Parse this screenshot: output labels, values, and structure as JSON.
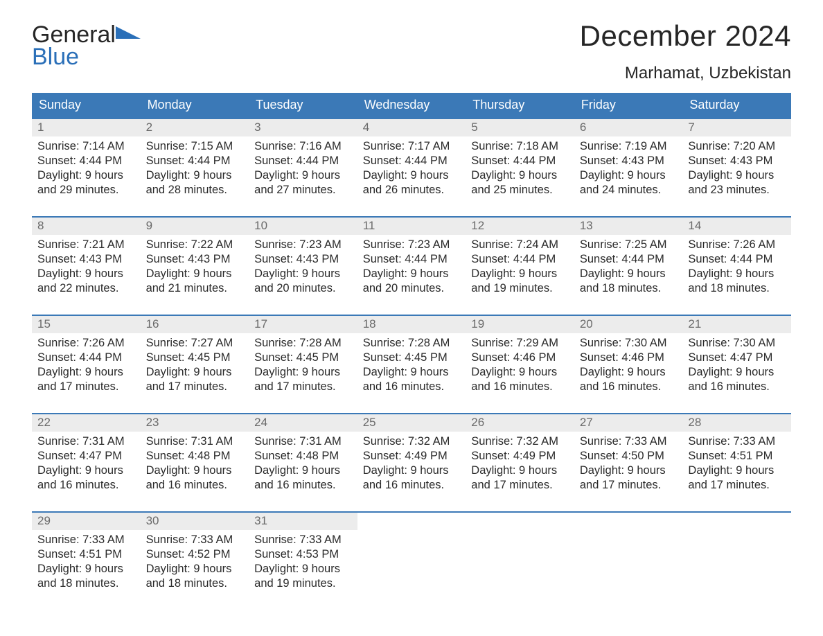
{
  "brand": {
    "word1": "General",
    "word2": "Blue"
  },
  "title": "December 2024",
  "location": "Marhamat, Uzbekistan",
  "colors": {
    "header_bg": "#3b79b7",
    "header_text": "#ffffff",
    "daynum_bg": "#ececec",
    "daynum_text": "#6a6a6a",
    "rule": "#3b79b7",
    "brand_blue": "#2a6fb8",
    "body_text": "#2a2a2a",
    "page_bg": "#ffffff"
  },
  "weekdays": [
    "Sunday",
    "Monday",
    "Tuesday",
    "Wednesday",
    "Thursday",
    "Friday",
    "Saturday"
  ],
  "weeks": [
    [
      {
        "num": "1",
        "sunrise": "Sunrise: 7:14 AM",
        "sunset": "Sunset: 4:44 PM",
        "d1": "Daylight: 9 hours",
        "d2": "and 29 minutes."
      },
      {
        "num": "2",
        "sunrise": "Sunrise: 7:15 AM",
        "sunset": "Sunset: 4:44 PM",
        "d1": "Daylight: 9 hours",
        "d2": "and 28 minutes."
      },
      {
        "num": "3",
        "sunrise": "Sunrise: 7:16 AM",
        "sunset": "Sunset: 4:44 PM",
        "d1": "Daylight: 9 hours",
        "d2": "and 27 minutes."
      },
      {
        "num": "4",
        "sunrise": "Sunrise: 7:17 AM",
        "sunset": "Sunset: 4:44 PM",
        "d1": "Daylight: 9 hours",
        "d2": "and 26 minutes."
      },
      {
        "num": "5",
        "sunrise": "Sunrise: 7:18 AM",
        "sunset": "Sunset: 4:44 PM",
        "d1": "Daylight: 9 hours",
        "d2": "and 25 minutes."
      },
      {
        "num": "6",
        "sunrise": "Sunrise: 7:19 AM",
        "sunset": "Sunset: 4:43 PM",
        "d1": "Daylight: 9 hours",
        "d2": "and 24 minutes."
      },
      {
        "num": "7",
        "sunrise": "Sunrise: 7:20 AM",
        "sunset": "Sunset: 4:43 PM",
        "d1": "Daylight: 9 hours",
        "d2": "and 23 minutes."
      }
    ],
    [
      {
        "num": "8",
        "sunrise": "Sunrise: 7:21 AM",
        "sunset": "Sunset: 4:43 PM",
        "d1": "Daylight: 9 hours",
        "d2": "and 22 minutes."
      },
      {
        "num": "9",
        "sunrise": "Sunrise: 7:22 AM",
        "sunset": "Sunset: 4:43 PM",
        "d1": "Daylight: 9 hours",
        "d2": "and 21 minutes."
      },
      {
        "num": "10",
        "sunrise": "Sunrise: 7:23 AM",
        "sunset": "Sunset: 4:43 PM",
        "d1": "Daylight: 9 hours",
        "d2": "and 20 minutes."
      },
      {
        "num": "11",
        "sunrise": "Sunrise: 7:23 AM",
        "sunset": "Sunset: 4:44 PM",
        "d1": "Daylight: 9 hours",
        "d2": "and 20 minutes."
      },
      {
        "num": "12",
        "sunrise": "Sunrise: 7:24 AM",
        "sunset": "Sunset: 4:44 PM",
        "d1": "Daylight: 9 hours",
        "d2": "and 19 minutes."
      },
      {
        "num": "13",
        "sunrise": "Sunrise: 7:25 AM",
        "sunset": "Sunset: 4:44 PM",
        "d1": "Daylight: 9 hours",
        "d2": "and 18 minutes."
      },
      {
        "num": "14",
        "sunrise": "Sunrise: 7:26 AM",
        "sunset": "Sunset: 4:44 PM",
        "d1": "Daylight: 9 hours",
        "d2": "and 18 minutes."
      }
    ],
    [
      {
        "num": "15",
        "sunrise": "Sunrise: 7:26 AM",
        "sunset": "Sunset: 4:44 PM",
        "d1": "Daylight: 9 hours",
        "d2": "and 17 minutes."
      },
      {
        "num": "16",
        "sunrise": "Sunrise: 7:27 AM",
        "sunset": "Sunset: 4:45 PM",
        "d1": "Daylight: 9 hours",
        "d2": "and 17 minutes."
      },
      {
        "num": "17",
        "sunrise": "Sunrise: 7:28 AM",
        "sunset": "Sunset: 4:45 PM",
        "d1": "Daylight: 9 hours",
        "d2": "and 17 minutes."
      },
      {
        "num": "18",
        "sunrise": "Sunrise: 7:28 AM",
        "sunset": "Sunset: 4:45 PM",
        "d1": "Daylight: 9 hours",
        "d2": "and 16 minutes."
      },
      {
        "num": "19",
        "sunrise": "Sunrise: 7:29 AM",
        "sunset": "Sunset: 4:46 PM",
        "d1": "Daylight: 9 hours",
        "d2": "and 16 minutes."
      },
      {
        "num": "20",
        "sunrise": "Sunrise: 7:30 AM",
        "sunset": "Sunset: 4:46 PM",
        "d1": "Daylight: 9 hours",
        "d2": "and 16 minutes."
      },
      {
        "num": "21",
        "sunrise": "Sunrise: 7:30 AM",
        "sunset": "Sunset: 4:47 PM",
        "d1": "Daylight: 9 hours",
        "d2": "and 16 minutes."
      }
    ],
    [
      {
        "num": "22",
        "sunrise": "Sunrise: 7:31 AM",
        "sunset": "Sunset: 4:47 PM",
        "d1": "Daylight: 9 hours",
        "d2": "and 16 minutes."
      },
      {
        "num": "23",
        "sunrise": "Sunrise: 7:31 AM",
        "sunset": "Sunset: 4:48 PM",
        "d1": "Daylight: 9 hours",
        "d2": "and 16 minutes."
      },
      {
        "num": "24",
        "sunrise": "Sunrise: 7:31 AM",
        "sunset": "Sunset: 4:48 PM",
        "d1": "Daylight: 9 hours",
        "d2": "and 16 minutes."
      },
      {
        "num": "25",
        "sunrise": "Sunrise: 7:32 AM",
        "sunset": "Sunset: 4:49 PM",
        "d1": "Daylight: 9 hours",
        "d2": "and 16 minutes."
      },
      {
        "num": "26",
        "sunrise": "Sunrise: 7:32 AM",
        "sunset": "Sunset: 4:49 PM",
        "d1": "Daylight: 9 hours",
        "d2": "and 17 minutes."
      },
      {
        "num": "27",
        "sunrise": "Sunrise: 7:33 AM",
        "sunset": "Sunset: 4:50 PM",
        "d1": "Daylight: 9 hours",
        "d2": "and 17 minutes."
      },
      {
        "num": "28",
        "sunrise": "Sunrise: 7:33 AM",
        "sunset": "Sunset: 4:51 PM",
        "d1": "Daylight: 9 hours",
        "d2": "and 17 minutes."
      }
    ],
    [
      {
        "num": "29",
        "sunrise": "Sunrise: 7:33 AM",
        "sunset": "Sunset: 4:51 PM",
        "d1": "Daylight: 9 hours",
        "d2": "and 18 minutes."
      },
      {
        "num": "30",
        "sunrise": "Sunrise: 7:33 AM",
        "sunset": "Sunset: 4:52 PM",
        "d1": "Daylight: 9 hours",
        "d2": "and 18 minutes."
      },
      {
        "num": "31",
        "sunrise": "Sunrise: 7:33 AM",
        "sunset": "Sunset: 4:53 PM",
        "d1": "Daylight: 9 hours",
        "d2": "and 19 minutes."
      },
      {
        "empty": true
      },
      {
        "empty": true
      },
      {
        "empty": true
      },
      {
        "empty": true
      }
    ]
  ]
}
